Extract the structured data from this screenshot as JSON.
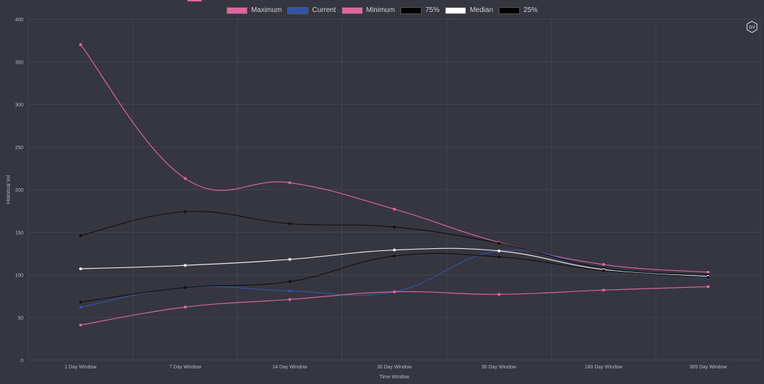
{
  "chart_data": {
    "type": "line",
    "title": "",
    "xlabel": "Time Window",
    "ylabel": "Historical Vol",
    "ylim": [
      0,
      400
    ],
    "yticks": [
      0,
      50,
      100,
      150,
      200,
      250,
      300,
      350,
      400
    ],
    "categories": [
      "1 Day Window",
      "7 Day Window",
      "14 Day Window",
      "30 Day Window",
      "90 Day Window",
      "180 Day Window",
      "365 Day Window"
    ],
    "series": [
      {
        "name": "Maximum",
        "color": "#e0679f",
        "legend_fill": "#e0679f",
        "values": [
          370,
          213,
          208,
          177,
          138,
          112,
          103
        ]
      },
      {
        "name": "Current",
        "color": "#2f54a8",
        "legend_fill": "#2f54a8",
        "values": [
          62,
          85,
          81,
          80,
          128,
          108,
          96
        ]
      },
      {
        "name": "Minimum",
        "color": "#e0679f",
        "legend_fill": "#e0679f",
        "values": [
          41,
          62,
          71,
          80,
          77,
          82,
          86
        ]
      },
      {
        "name": "75%",
        "color": "#111111",
        "legend_fill": "#000000",
        "values": [
          146,
          174,
          160,
          156,
          137,
          108,
          100
        ]
      },
      {
        "name": "Median",
        "color": "#f2f2f2",
        "legend_fill": "#ffffff",
        "values": [
          107,
          111,
          118,
          129,
          128,
          106,
          98
        ]
      },
      {
        "name": "25%",
        "color": "#111111",
        "legend_fill": "#000000",
        "values": [
          68,
          85,
          92,
          122,
          121,
          105,
          97
        ]
      }
    ]
  },
  "branding": {
    "logo_text": "GV",
    "accent": "#e0679f"
  },
  "theme": {
    "background": "#363640",
    "grid": "#44444e",
    "tick_text": "#b9b9c4"
  }
}
